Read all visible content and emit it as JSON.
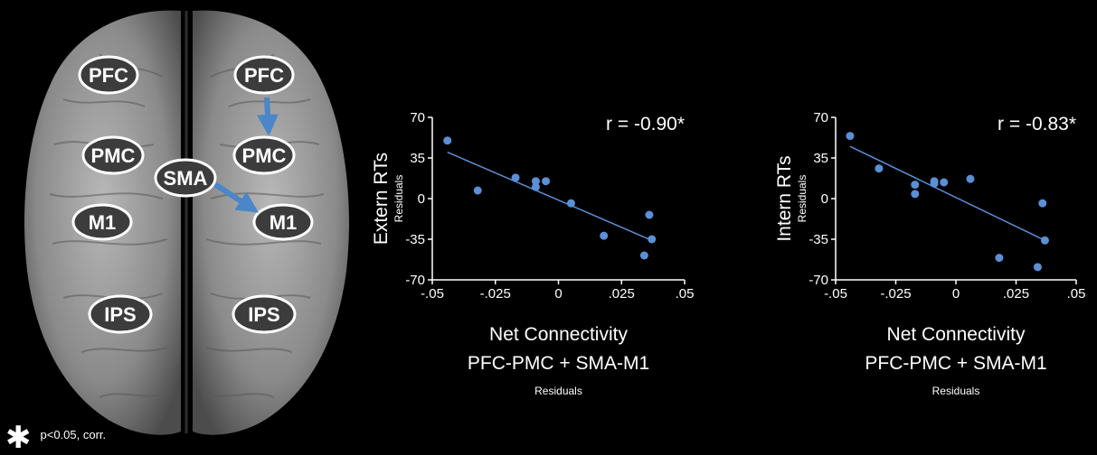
{
  "brain": {
    "regions_left": [
      "PFC",
      "PMC",
      "M1",
      "IPS"
    ],
    "regions_right": [
      "PFC",
      "PMC",
      "M1",
      "IPS"
    ],
    "region_midline": "SMA",
    "arrow_color": "#4a86c8"
  },
  "colors": {
    "point": "#5b8fd6",
    "line": "#5b8fd6",
    "text": "#ffffff",
    "background": "#000000"
  },
  "chart_data": [
    {
      "type": "scatter",
      "ylabel": "Extern RTs",
      "ylabel_sub": "Residuals",
      "xlabel_lines": [
        "Net Connectivity",
        "PFC-PMC + SMA-M1"
      ],
      "xlabel_sub": "Residuals",
      "annotation": "r = -0.90*",
      "xlim": [
        -0.05,
        0.05
      ],
      "ylim": [
        -70,
        70
      ],
      "xticks": [
        -0.05,
        -0.025,
        0,
        0.025,
        0.05
      ],
      "xtick_labels": [
        "-.05",
        "-.025",
        "0",
        ".025",
        ".05"
      ],
      "yticks": [
        70,
        35,
        0,
        -35,
        -70
      ],
      "ytick_labels": [
        "70",
        "35",
        "0",
        "-35",
        "-70"
      ],
      "points": [
        {
          "x": -0.044,
          "y": 50
        },
        {
          "x": -0.032,
          "y": 7
        },
        {
          "x": -0.017,
          "y": 18
        },
        {
          "x": -0.009,
          "y": 15
        },
        {
          "x": -0.009,
          "y": 10
        },
        {
          "x": -0.005,
          "y": 15
        },
        {
          "x": 0.005,
          "y": -4
        },
        {
          "x": 0.018,
          "y": -32
        },
        {
          "x": 0.034,
          "y": -49
        },
        {
          "x": 0.036,
          "y": -14
        },
        {
          "x": 0.037,
          "y": -35
        }
      ],
      "trendline": [
        {
          "x": -0.044,
          "y": 40
        },
        {
          "x": 0.037,
          "y": -36
        }
      ]
    },
    {
      "type": "scatter",
      "ylabel": "Intern RTs",
      "ylabel_sub": "Residuals",
      "xlabel_lines": [
        "Net Connectivity",
        "PFC-PMC + SMA-M1"
      ],
      "xlabel_sub": "Residuals",
      "annotation": "r = -0.83*",
      "xlim": [
        -0.05,
        0.05
      ],
      "ylim": [
        -70,
        70
      ],
      "xticks": [
        -0.05,
        -0.025,
        0,
        0.025,
        0.05
      ],
      "xtick_labels": [
        "-.05",
        "-.025",
        "0",
        ".025",
        ".05"
      ],
      "yticks": [
        70,
        35,
        0,
        -35,
        -70
      ],
      "ytick_labels": [
        "70",
        "35",
        "0",
        "-35",
        "-70"
      ],
      "points": [
        {
          "x": -0.044,
          "y": 54
        },
        {
          "x": -0.032,
          "y": 26
        },
        {
          "x": -0.017,
          "y": 12
        },
        {
          "x": -0.017,
          "y": 4
        },
        {
          "x": -0.009,
          "y": 15
        },
        {
          "x": -0.009,
          "y": 13
        },
        {
          "x": -0.005,
          "y": 14
        },
        {
          "x": 0.006,
          "y": 17
        },
        {
          "x": 0.018,
          "y": -51
        },
        {
          "x": 0.034,
          "y": -59
        },
        {
          "x": 0.036,
          "y": -4
        },
        {
          "x": 0.037,
          "y": -36
        }
      ],
      "trendline": [
        {
          "x": -0.044,
          "y": 45
        },
        {
          "x": 0.037,
          "y": -36
        }
      ]
    }
  ],
  "footnote": {
    "symbol": "✱",
    "text": "p<0.05, corr."
  }
}
